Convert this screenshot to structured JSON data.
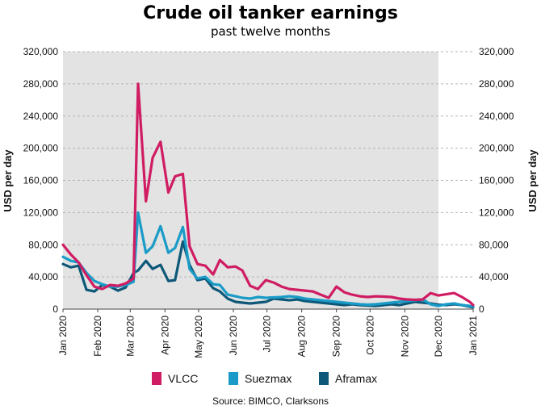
{
  "chart_data": {
    "type": "line",
    "title": "Crude oil tanker earnings",
    "subtitle": "past twelve months",
    "ylabel_left": "USD per day",
    "ylabel_right": "USD per day",
    "source": "Source: BIMCO, Clarksons",
    "ylim": [
      0,
      320000
    ],
    "yticks": [
      "0",
      "40,000",
      "80,000",
      "120,000",
      "160,000",
      "200,000",
      "240,000",
      "280,000",
      "320,000"
    ],
    "ytick_values": [
      0,
      40000,
      80000,
      120000,
      160000,
      200000,
      240000,
      280000,
      320000
    ],
    "xlim": [
      "2020-01-01",
      "2021-01-01"
    ],
    "xticks": [
      "Jan 2020",
      "Feb 2020",
      "Mar 2020",
      "Apr 2020",
      "May 2020",
      "Jun 2020",
      "Jul 2020",
      "Aug 2020",
      "Sep 2020",
      "Oct 2020",
      "Nov 2020",
      "Dec 2020",
      "Jan 2021"
    ],
    "xtick_dates": [
      "2020-01-01",
      "2020-02-01",
      "2020-03-01",
      "2020-04-01",
      "2020-05-01",
      "2020-06-01",
      "2020-07-01",
      "2020-08-01",
      "2020-09-01",
      "2020-10-01",
      "2020-11-01",
      "2020-12-01",
      "2021-01-01"
    ],
    "shaded_range": [
      "2020-01-01",
      "2020-12-01"
    ],
    "grid": "horizontal dashed",
    "legend_position": "bottom",
    "series": [
      {
        "name": "VLCC",
        "color": "#d01c62",
        "points": [
          [
            "2020-01-01",
            80000
          ],
          [
            "2020-01-08",
            68000
          ],
          [
            "2020-01-15",
            58000
          ],
          [
            "2020-01-22",
            42000
          ],
          [
            "2020-01-29",
            28000
          ],
          [
            "2020-02-05",
            25000
          ],
          [
            "2020-02-12",
            30000
          ],
          [
            "2020-02-19",
            29000
          ],
          [
            "2020-02-26",
            32000
          ],
          [
            "2020-03-04",
            38000
          ],
          [
            "2020-03-08",
            280000
          ],
          [
            "2020-03-15",
            134000
          ],
          [
            "2020-03-21",
            188000
          ],
          [
            "2020-03-28",
            208000
          ],
          [
            "2020-04-04",
            145000
          ],
          [
            "2020-04-10",
            165000
          ],
          [
            "2020-04-17",
            168000
          ],
          [
            "2020-04-23",
            78000
          ],
          [
            "2020-04-30",
            56000
          ],
          [
            "2020-05-07",
            54000
          ],
          [
            "2020-05-14",
            43000
          ],
          [
            "2020-05-20",
            61000
          ],
          [
            "2020-05-27",
            52000
          ],
          [
            "2020-06-03",
            53000
          ],
          [
            "2020-06-09",
            48000
          ],
          [
            "2020-06-16",
            29000
          ],
          [
            "2020-06-23",
            25000
          ],
          [
            "2020-06-30",
            36000
          ],
          [
            "2020-07-07",
            33000
          ],
          [
            "2020-07-14",
            28000
          ],
          [
            "2020-07-21",
            25000
          ],
          [
            "2020-07-28",
            24000
          ],
          [
            "2020-08-04",
            23000
          ],
          [
            "2020-08-11",
            22000
          ],
          [
            "2020-08-18",
            18000
          ],
          [
            "2020-08-25",
            14000
          ],
          [
            "2020-09-01",
            28000
          ],
          [
            "2020-09-08",
            21000
          ],
          [
            "2020-09-15",
            18000
          ],
          [
            "2020-09-22",
            16000
          ],
          [
            "2020-09-29",
            15000
          ],
          [
            "2020-10-06",
            16000
          ],
          [
            "2020-10-13",
            15500
          ],
          [
            "2020-10-20",
            15000
          ],
          [
            "2020-10-27",
            13000
          ],
          [
            "2020-11-03",
            12000
          ],
          [
            "2020-11-10",
            11500
          ],
          [
            "2020-11-17",
            12000
          ],
          [
            "2020-11-24",
            20000
          ],
          [
            "2020-12-01",
            17000
          ],
          [
            "2020-12-08",
            18500
          ],
          [
            "2020-12-15",
            20000
          ],
          [
            "2020-12-22",
            15000
          ],
          [
            "2020-12-29",
            9000
          ],
          [
            "2021-01-01",
            5000
          ]
        ]
      },
      {
        "name": "Suezmax",
        "color": "#1a9bc7",
        "points": [
          [
            "2020-01-01",
            65000
          ],
          [
            "2020-01-08",
            60000
          ],
          [
            "2020-01-15",
            58000
          ],
          [
            "2020-01-22",
            45000
          ],
          [
            "2020-01-29",
            35000
          ],
          [
            "2020-02-05",
            31000
          ],
          [
            "2020-02-12",
            28000
          ],
          [
            "2020-02-19",
            28000
          ],
          [
            "2020-02-26",
            30000
          ],
          [
            "2020-03-04",
            34000
          ],
          [
            "2020-03-08",
            120000
          ],
          [
            "2020-03-15",
            70000
          ],
          [
            "2020-03-21",
            78000
          ],
          [
            "2020-03-28",
            103000
          ],
          [
            "2020-04-04",
            70000
          ],
          [
            "2020-04-10",
            76000
          ],
          [
            "2020-04-17",
            102000
          ],
          [
            "2020-04-23",
            50000
          ],
          [
            "2020-04-30",
            38000
          ],
          [
            "2020-05-07",
            40000
          ],
          [
            "2020-05-14",
            31000
          ],
          [
            "2020-05-20",
            30000
          ],
          [
            "2020-05-27",
            18000
          ],
          [
            "2020-06-03",
            16000
          ],
          [
            "2020-06-09",
            14000
          ],
          [
            "2020-06-16",
            13000
          ],
          [
            "2020-06-23",
            15000
          ],
          [
            "2020-06-30",
            14000
          ],
          [
            "2020-07-07",
            14500
          ],
          [
            "2020-07-14",
            15000
          ],
          [
            "2020-07-21",
            16000
          ],
          [
            "2020-07-28",
            15000
          ],
          [
            "2020-08-04",
            13000
          ],
          [
            "2020-08-11",
            12000
          ],
          [
            "2020-08-18",
            11000
          ],
          [
            "2020-08-25",
            10000
          ],
          [
            "2020-09-01",
            9000
          ],
          [
            "2020-09-08",
            8000
          ],
          [
            "2020-09-15",
            7000
          ],
          [
            "2020-09-22",
            6000
          ],
          [
            "2020-09-29",
            5500
          ],
          [
            "2020-10-06",
            6000
          ],
          [
            "2020-10-13",
            7000
          ],
          [
            "2020-10-20",
            8000
          ],
          [
            "2020-10-27",
            9000
          ],
          [
            "2020-11-03",
            10000
          ],
          [
            "2020-11-10",
            11000
          ],
          [
            "2020-11-17",
            12000
          ],
          [
            "2020-11-24",
            6000
          ],
          [
            "2020-12-01",
            4000
          ],
          [
            "2020-12-08",
            6000
          ],
          [
            "2020-12-15",
            7000
          ],
          [
            "2020-12-22",
            5000
          ],
          [
            "2020-12-29",
            4000
          ],
          [
            "2021-01-01",
            3000
          ]
        ]
      },
      {
        "name": "Aframax",
        "color": "#0d5878",
        "points": [
          [
            "2020-01-01",
            56000
          ],
          [
            "2020-01-08",
            52000
          ],
          [
            "2020-01-15",
            54000
          ],
          [
            "2020-01-22",
            24000
          ],
          [
            "2020-01-29",
            22000
          ],
          [
            "2020-02-05",
            30000
          ],
          [
            "2020-02-12",
            28000
          ],
          [
            "2020-02-19",
            23000
          ],
          [
            "2020-02-26",
            27000
          ],
          [
            "2020-03-04",
            45000
          ],
          [
            "2020-03-08",
            48000
          ],
          [
            "2020-03-15",
            60000
          ],
          [
            "2020-03-21",
            50000
          ],
          [
            "2020-03-28",
            55000
          ],
          [
            "2020-04-04",
            35000
          ],
          [
            "2020-04-10",
            36000
          ],
          [
            "2020-04-17",
            84000
          ],
          [
            "2020-04-23",
            55000
          ],
          [
            "2020-04-30",
            36000
          ],
          [
            "2020-05-07",
            38000
          ],
          [
            "2020-05-14",
            26000
          ],
          [
            "2020-05-20",
            22000
          ],
          [
            "2020-05-27",
            13000
          ],
          [
            "2020-06-03",
            9000
          ],
          [
            "2020-06-09",
            8000
          ],
          [
            "2020-06-16",
            7000
          ],
          [
            "2020-06-23",
            8000
          ],
          [
            "2020-06-30",
            9000
          ],
          [
            "2020-07-07",
            13000
          ],
          [
            "2020-07-14",
            12000
          ],
          [
            "2020-07-21",
            11000
          ],
          [
            "2020-07-28",
            12000
          ],
          [
            "2020-08-04",
            10000
          ],
          [
            "2020-08-11",
            9000
          ],
          [
            "2020-08-18",
            8000
          ],
          [
            "2020-08-25",
            7000
          ],
          [
            "2020-09-01",
            6000
          ],
          [
            "2020-09-08",
            5000
          ],
          [
            "2020-09-15",
            6000
          ],
          [
            "2020-09-22",
            5000
          ],
          [
            "2020-09-29",
            4500
          ],
          [
            "2020-10-06",
            4000
          ],
          [
            "2020-10-13",
            5000
          ],
          [
            "2020-10-20",
            6000
          ],
          [
            "2020-10-27",
            5000
          ],
          [
            "2020-11-03",
            7000
          ],
          [
            "2020-11-10",
            9000
          ],
          [
            "2020-11-17",
            8000
          ],
          [
            "2020-11-24",
            7000
          ],
          [
            "2020-12-01",
            5500
          ],
          [
            "2020-12-08",
            5000
          ],
          [
            "2020-12-15",
            6000
          ],
          [
            "2020-12-22",
            5000
          ],
          [
            "2020-12-29",
            3000
          ],
          [
            "2021-01-01",
            2000
          ]
        ]
      }
    ]
  }
}
